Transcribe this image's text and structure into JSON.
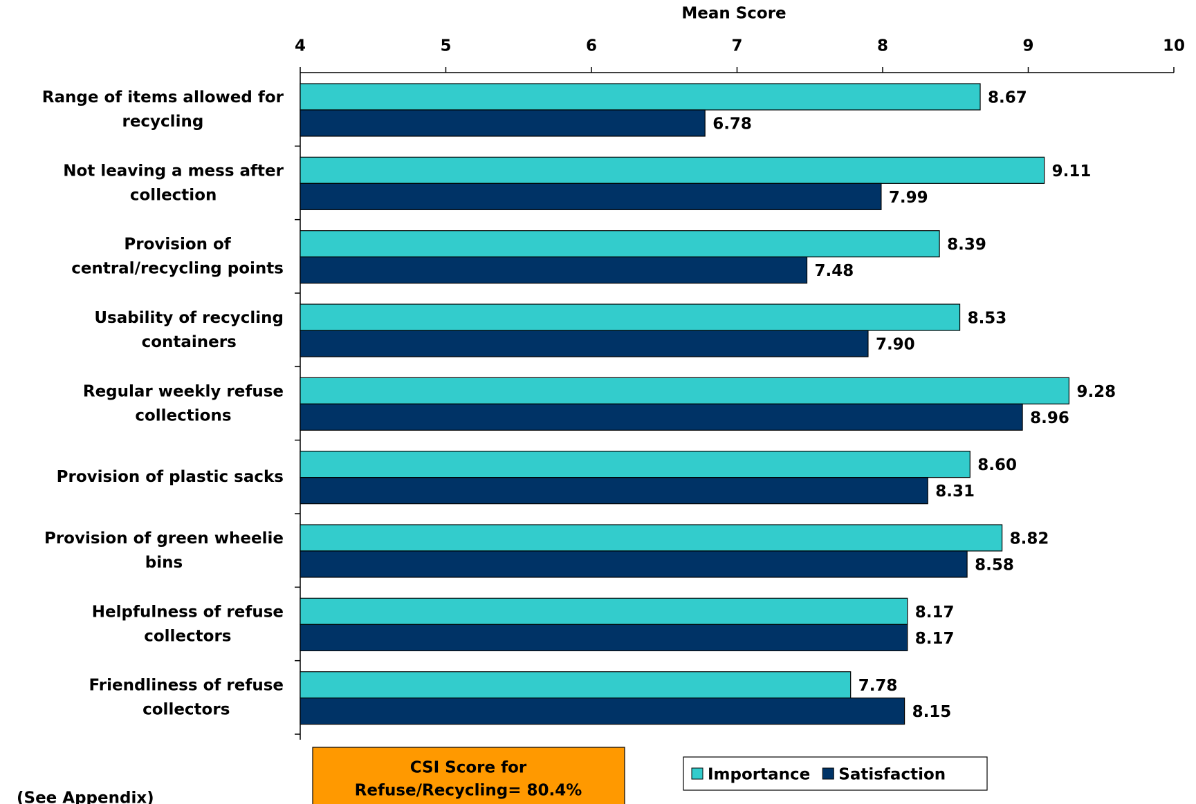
{
  "chart_data": {
    "type": "barh",
    "x_label": "Mean Score",
    "categories": [
      [
        "Range of items allowed for",
        "recycling"
      ],
      [
        "Not leaving a mess after",
        "collection"
      ],
      [
        "Provision of",
        "central/recycling points"
      ],
      [
        "Usability of recycling",
        "containers"
      ],
      [
        "Regular weekly refuse",
        "collections"
      ],
      [
        "Provision of plastic sacks"
      ],
      [
        "Provision of green wheelie",
        "bins"
      ],
      [
        "Helpfulness of refuse",
        "collectors"
      ],
      [
        "Friendliness of refuse",
        "collectors"
      ]
    ],
    "series": [
      {
        "name": "Importance",
        "color": "#33cccc",
        "values": [
          8.67,
          9.11,
          8.39,
          8.53,
          9.28,
          8.6,
          8.82,
          8.17,
          7.78
        ],
        "value_labels": [
          "8.67",
          "9.11",
          "8.39",
          "8.53",
          "9.28",
          "8.60",
          "8.82",
          "8.17",
          "7.78"
        ]
      },
      {
        "name": "Satisfaction",
        "color": "#003366",
        "values": [
          6.78,
          7.99,
          7.48,
          7.9,
          8.96,
          8.31,
          8.58,
          8.17,
          8.15
        ],
        "value_labels": [
          "6.78",
          "7.99",
          "7.48",
          "7.90",
          "8.96",
          "8.31",
          "8.58",
          "8.17",
          "8.15"
        ]
      }
    ],
    "xlim": [
      4,
      10
    ],
    "xticks": [
      4,
      5,
      6,
      7,
      8,
      9,
      10
    ],
    "annotation": [
      "CSI Score for",
      "Refuse/Recycling= 80.4%"
    ],
    "footnote": "(See Appendix)",
    "legend": "bottom"
  }
}
